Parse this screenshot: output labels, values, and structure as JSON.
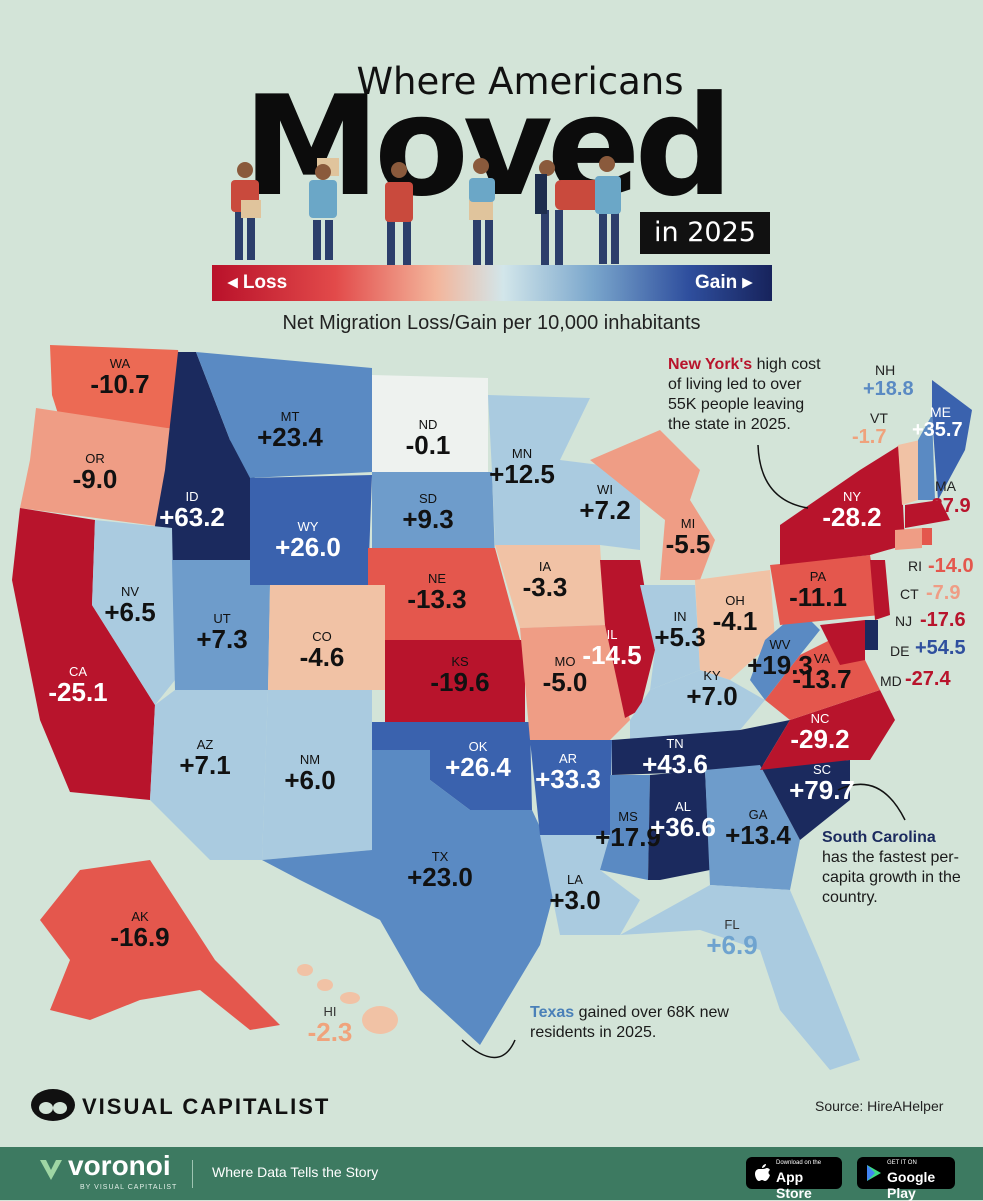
{
  "header": {
    "title_top": "Where Americans",
    "title_big": "Moved",
    "title_year": "in 2025",
    "scale_loss": "◂ Loss",
    "scale_gain": "Gain ▸",
    "subtitle": "Net Migration Loss/Gain per 10,000 inhabitants"
  },
  "colors": {
    "strong_gain": "#1b2a5e",
    "gain": "#3a62ae",
    "mild_gain": "#6e9ccb",
    "slight_gain": "#aacbe0",
    "neutral": "#eef2ef",
    "slight_loss": "#f1c2a5",
    "mild_loss": "#ef9d85",
    "loss": "#e4574d",
    "strong_loss": "#b8142c",
    "background": "#d3e4d8"
  },
  "states": [
    {
      "abbr": "WA",
      "value": "-10.7"
    },
    {
      "abbr": "OR",
      "value": "-9.0"
    },
    {
      "abbr": "CA",
      "value": "-25.1"
    },
    {
      "abbr": "ID",
      "value": "+63.2"
    },
    {
      "abbr": "MT",
      "value": "+23.4"
    },
    {
      "abbr": "WY",
      "value": "+26.0"
    },
    {
      "abbr": "NV",
      "value": "+6.5"
    },
    {
      "abbr": "UT",
      "value": "+7.3"
    },
    {
      "abbr": "AZ",
      "value": "+7.1"
    },
    {
      "abbr": "CO",
      "value": "-4.6"
    },
    {
      "abbr": "NM",
      "value": "+6.0"
    },
    {
      "abbr": "ND",
      "value": "-0.1"
    },
    {
      "abbr": "SD",
      "value": "+9.3"
    },
    {
      "abbr": "NE",
      "value": "-13.3"
    },
    {
      "abbr": "KS",
      "value": "-19.6"
    },
    {
      "abbr": "OK",
      "value": "+26.4"
    },
    {
      "abbr": "TX",
      "value": "+23.0"
    },
    {
      "abbr": "MN",
      "value": "+12.5"
    },
    {
      "abbr": "IA",
      "value": "-3.3"
    },
    {
      "abbr": "MO",
      "value": "-5.0"
    },
    {
      "abbr": "AR",
      "value": "+33.3"
    },
    {
      "abbr": "LA",
      "value": "+3.0"
    },
    {
      "abbr": "WI",
      "value": "+7.2"
    },
    {
      "abbr": "IL",
      "value": "-14.5"
    },
    {
      "abbr": "MI",
      "value": "-5.5"
    },
    {
      "abbr": "IN",
      "value": "+5.3"
    },
    {
      "abbr": "OH",
      "value": "-4.1"
    },
    {
      "abbr": "KY",
      "value": "+7.0"
    },
    {
      "abbr": "TN",
      "value": "+43.6"
    },
    {
      "abbr": "MS",
      "value": "+17.9"
    },
    {
      "abbr": "AL",
      "value": "+36.6"
    },
    {
      "abbr": "GA",
      "value": "+13.4"
    },
    {
      "abbr": "FL",
      "value": "+6.9"
    },
    {
      "abbr": "SC",
      "value": "+79.7"
    },
    {
      "abbr": "NC",
      "value": "-29.2"
    },
    {
      "abbr": "VA",
      "value": "-13.7"
    },
    {
      "abbr": "WV",
      "value": "+19.3"
    },
    {
      "abbr": "PA",
      "value": "-11.1"
    },
    {
      "abbr": "NY",
      "value": "-28.2"
    },
    {
      "abbr": "AK",
      "value": "-16.9"
    },
    {
      "abbr": "HI",
      "value": "-2.3"
    },
    {
      "abbr": "NH",
      "value": "+18.8"
    },
    {
      "abbr": "VT",
      "value": "-1.7"
    },
    {
      "abbr": "ME",
      "value": "+35.7"
    },
    {
      "abbr": "MA",
      "value": "-37.9"
    },
    {
      "abbr": "RI",
      "value": "-14.0"
    },
    {
      "abbr": "CT",
      "value": "-7.9"
    },
    {
      "abbr": "NJ",
      "value": "-17.6"
    },
    {
      "abbr": "DE",
      "value": "+54.5"
    },
    {
      "abbr": "MD",
      "value": "-27.4"
    }
  ],
  "annotations": {
    "ny_bold": "New York's",
    "ny_text": " high cost of living led to over 55K people leaving the state in 2025.",
    "sc_bold": "South Carolina",
    "sc_text": " has the fastest per-capita growth in the country.",
    "tx_bold": "Texas",
    "tx_text": " gained over 68K new residents in 2025."
  },
  "footer": {
    "brand": "VISUAL CAPITALIST",
    "source": "Source: HireAHelper",
    "voronoi": "voronoi",
    "voronoi_sub": "BY VISUAL CAPITALIST",
    "tagline": "Where Data Tells the Story",
    "appstore_small": "Download on the",
    "appstore_big": "App Store",
    "googleplay_small": "GET IT ON",
    "googleplay_big": "Google Play"
  }
}
